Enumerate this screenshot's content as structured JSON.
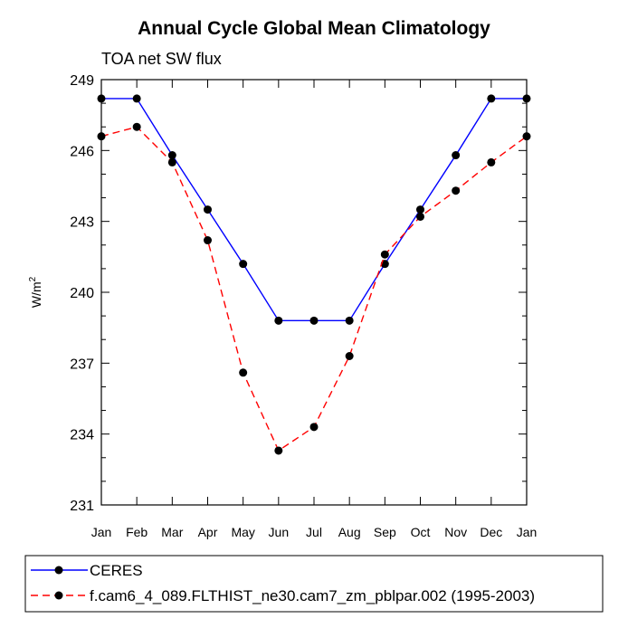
{
  "chart_data": {
    "type": "line",
    "title": "Annual Cycle Global Mean Climatology",
    "subtitle": "TOA net SW flux",
    "ylabel_base": "W/m",
    "ylabel_sup": "2",
    "xlabel": "",
    "categories": [
      "Jan",
      "Feb",
      "Mar",
      "Apr",
      "May",
      "Jun",
      "Jul",
      "Aug",
      "Sep",
      "Oct",
      "Nov",
      "Dec",
      "Jan"
    ],
    "ylim": [
      231,
      249
    ],
    "yticks": [
      231,
      234,
      237,
      240,
      243,
      246,
      249
    ],
    "grid": false,
    "legend_position": "bottom",
    "series": [
      {
        "name": "CERES",
        "color": "#0000ff",
        "dash": "solid",
        "values": [
          248.2,
          248.2,
          245.8,
          243.5,
          241.2,
          238.8,
          238.8,
          238.8,
          241.2,
          243.5,
          245.8,
          248.2,
          248.2
        ]
      },
      {
        "name": "f.cam6_4_089.FLTHIST_ne30.cam7_zm_pblpar.002 (1995-2003)",
        "color": "#ff0000",
        "dash": "dashed",
        "values": [
          246.6,
          247.0,
          245.5,
          242.2,
          236.6,
          233.3,
          234.3,
          237.3,
          241.6,
          243.2,
          244.3,
          245.5,
          246.6
        ]
      }
    ]
  }
}
